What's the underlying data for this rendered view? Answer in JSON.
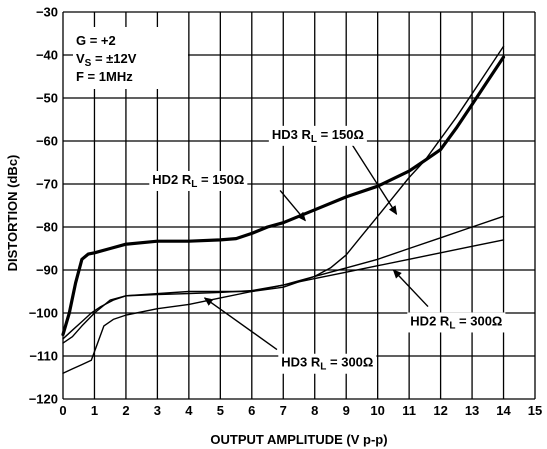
{
  "chart_data": {
    "type": "line",
    "title": "",
    "xlabel": "OUTPUT AMPLITUDE (V p-p)",
    "ylabel": "DISTORTION (dBc)",
    "xlim": [
      0,
      15
    ],
    "ylim": [
      -120,
      -30
    ],
    "xticks": [
      0,
      1,
      2,
      3,
      4,
      5,
      6,
      7,
      8,
      9,
      10,
      11,
      12,
      13,
      14,
      15
    ],
    "yticks": [
      -30,
      -40,
      -50,
      -60,
      -70,
      -80,
      -90,
      -100,
      -110,
      -120
    ],
    "grid": true,
    "conditions": {
      "gain_label": "G = +2",
      "vs_main": "V",
      "vs_sub": "S",
      "vs_value": " = ±12V",
      "freq_label": "F = 1MHz"
    },
    "series": [
      {
        "name": "HD2 RL = 150Ω",
        "label": {
          "main": "HD2 R",
          "sub": "L",
          "tail": " = 150Ω"
        },
        "line_weight": "heavy",
        "x": [
          0,
          0.2,
          0.4,
          0.6,
          0.8,
          1,
          1.5,
          2,
          3,
          4,
          5,
          5.5,
          6,
          6.5,
          7,
          8,
          9,
          10,
          11,
          11.5,
          12,
          12.5,
          13,
          13.5,
          14
        ],
        "y": [
          -105,
          -100,
          -93,
          -87.5,
          -86.3,
          -86,
          -85,
          -84,
          -83.3,
          -83.3,
          -83,
          -82.7,
          -81.5,
          -80,
          -79,
          -76,
          -73,
          -70.5,
          -67,
          -64.5,
          -62,
          -57,
          -51.5,
          -46,
          -40.5
        ]
      },
      {
        "name": "HD3 RL = 150Ω",
        "label": {
          "main": "HD3 R",
          "sub": "L",
          "tail": " = 150Ω"
        },
        "line_weight": "normal",
        "x": [
          0,
          0.3,
          0.6,
          0.9,
          1.2,
          1.6,
          2,
          3,
          4,
          5,
          6,
          7,
          8,
          8.5,
          9,
          9.5,
          10,
          10.5,
          11,
          11.5,
          12,
          12.5,
          13,
          13.5,
          14
        ],
        "y": [
          -106,
          -104,
          -102,
          -100,
          -98.5,
          -97,
          -96,
          -95.5,
          -95,
          -95,
          -95,
          -94,
          -91.5,
          -89.5,
          -86.5,
          -82,
          -77.5,
          -73,
          -68.5,
          -64.5,
          -59.5,
          -54.5,
          -49,
          -43.5,
          -38
        ]
      },
      {
        "name": "HD2 RL = 300Ω",
        "label": {
          "main": "HD2 R",
          "sub": "L",
          "tail": " = 300Ω"
        },
        "line_weight": "normal",
        "x": [
          0,
          0.3,
          0.6,
          1,
          1.5,
          2,
          3,
          4,
          5,
          6,
          7,
          8,
          9,
          10,
          11,
          12,
          13,
          14
        ],
        "y": [
          -107,
          -105.5,
          -103,
          -100,
          -97,
          -96,
          -95.7,
          -95.5,
          -95.2,
          -94.8,
          -93.5,
          -92,
          -90.5,
          -89,
          -87.5,
          -86,
          -84.5,
          -83
        ]
      },
      {
        "name": "HD3 RL = 300Ω",
        "label": {
          "main": "HD3 R",
          "sub": "L",
          "tail": " = 300Ω"
        },
        "line_weight": "normal",
        "x": [
          0,
          0.3,
          0.6,
          0.9,
          1.1,
          1.3,
          1.6,
          2,
          3,
          4,
          5,
          6,
          7,
          8,
          9,
          10,
          11,
          12,
          13,
          14
        ],
        "y": [
          -114,
          -113,
          -112,
          -111,
          -107,
          -103,
          -101.5,
          -100.5,
          -99,
          -98,
          -96.5,
          -95,
          -93.5,
          -91.5,
          -89.5,
          -87.5,
          -85,
          -82.5,
          -80,
          -77.5
        ]
      }
    ],
    "annotations": [
      {
        "series": 0,
        "text_x": 4.3,
        "text_y": -69.3,
        "arrow_from": [
          6.9,
          -71.5
        ],
        "arrow_to": [
          7.7,
          -78.5
        ]
      },
      {
        "series": 1,
        "text_x": 8.1,
        "text_y": -58.8,
        "arrow_from": [
          9.2,
          -61
        ],
        "arrow_to": [
          10.6,
          -77
        ]
      },
      {
        "series": 2,
        "text_x": 12.5,
        "text_y": -102.2,
        "arrow_from": [
          11.6,
          -98.5
        ],
        "arrow_to": [
          10.5,
          -90
        ]
      },
      {
        "series": 3,
        "text_x": 8.4,
        "text_y": -111.8,
        "arrow_from": [
          6.8,
          -108.5
        ],
        "arrow_to": [
          4.5,
          -96.5
        ]
      }
    ]
  }
}
